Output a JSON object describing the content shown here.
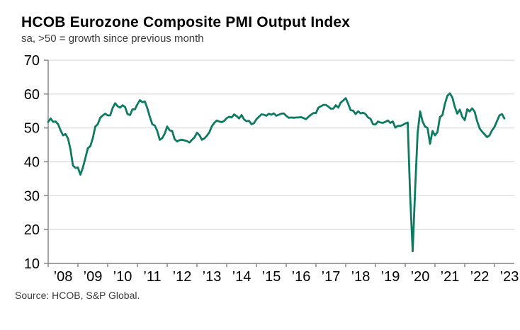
{
  "chart_data": {
    "type": "line",
    "title": "HCOB Eurozone Composite PMI Output Index",
    "subtitle": "sa, >50 = growth since previous month",
    "source_note": "Source: HCOB, S&P Global.",
    "x_unit": "monthly",
    "x_range": "Jan 2008 - May 2023",
    "x_tick_labels": [
      "’08",
      "’09",
      "’10",
      "’11",
      "’12",
      "’13",
      "’14",
      "’15",
      "’16",
      "’17",
      "’18",
      "’19",
      "’20",
      "’21",
      "’22",
      "’23"
    ],
    "y_ticks": [
      10,
      20,
      30,
      40,
      50,
      60,
      70
    ],
    "ylim": [
      10,
      70
    ],
    "grid": true,
    "legend": "none",
    "line_color": "#0E7A62",
    "axis_color": "#808080",
    "grid_color": "#d9d9d9",
    "series": [
      {
        "name": "Eurozone Composite PMI Output Index",
        "values": [
          51.8,
          52.8,
          51.8,
          51.9,
          51.1,
          49.3,
          47.8,
          48.2,
          46.9,
          43.6,
          38.9,
          38.2,
          38.3,
          36.2,
          38.3,
          41.1,
          44.0,
          44.6,
          47.0,
          50.4,
          51.1,
          53.0,
          53.7,
          54.2,
          53.7,
          53.7,
          55.9,
          57.3,
          56.4,
          56.0,
          56.7,
          56.2,
          54.1,
          53.8,
          55.5,
          55.5,
          57.0,
          58.2,
          57.6,
          57.8,
          55.8,
          53.3,
          51.1,
          50.7,
          49.1,
          46.5,
          47.0,
          48.3,
          50.4,
          49.3,
          49.1,
          46.7,
          46.0,
          46.4,
          46.5,
          46.3,
          46.1,
          45.7,
          46.5,
          47.2,
          48.6,
          47.9,
          46.5,
          46.9,
          47.7,
          48.7,
          50.5,
          51.5,
          52.2,
          51.9,
          51.7,
          52.1,
          52.9,
          53.3,
          53.1,
          54.0,
          53.5,
          52.8,
          53.8,
          52.5,
          52.0,
          52.1,
          51.1,
          51.4,
          52.6,
          53.3,
          54.0,
          53.9,
          53.6,
          54.2,
          53.9,
          54.3,
          53.6,
          53.9,
          54.2,
          54.3,
          53.6,
          53.0,
          53.1,
          53.0,
          53.1,
          53.1,
          53.2,
          52.9,
          52.6,
          53.3,
          53.9,
          54.4,
          54.4,
          56.0,
          56.4,
          56.8,
          56.8,
          56.3,
          55.7,
          55.7,
          56.7,
          56.0,
          57.5,
          58.1,
          58.8,
          57.1,
          55.2,
          55.1,
          54.1,
          54.9,
          54.3,
          54.5,
          54.1,
          53.1,
          52.7,
          51.1,
          51.0,
          51.9,
          51.6,
          51.5,
          51.8,
          52.2,
          51.5,
          51.9,
          50.1,
          50.6,
          50.6,
          50.9,
          51.3,
          51.6,
          29.7,
          13.6,
          31.9,
          48.5,
          54.9,
          51.9,
          50.4,
          50.0,
          45.3,
          49.1,
          47.8,
          48.8,
          53.2,
          53.8,
          57.1,
          59.5,
          60.2,
          59.0,
          56.2,
          54.2,
          55.4,
          53.3,
          52.3,
          55.5,
          54.9,
          55.8,
          54.8,
          52.0,
          49.9,
          48.9,
          48.1,
          47.3,
          47.8,
          49.3,
          50.3,
          52.0,
          53.7,
          54.1,
          52.8
        ]
      }
    ]
  }
}
